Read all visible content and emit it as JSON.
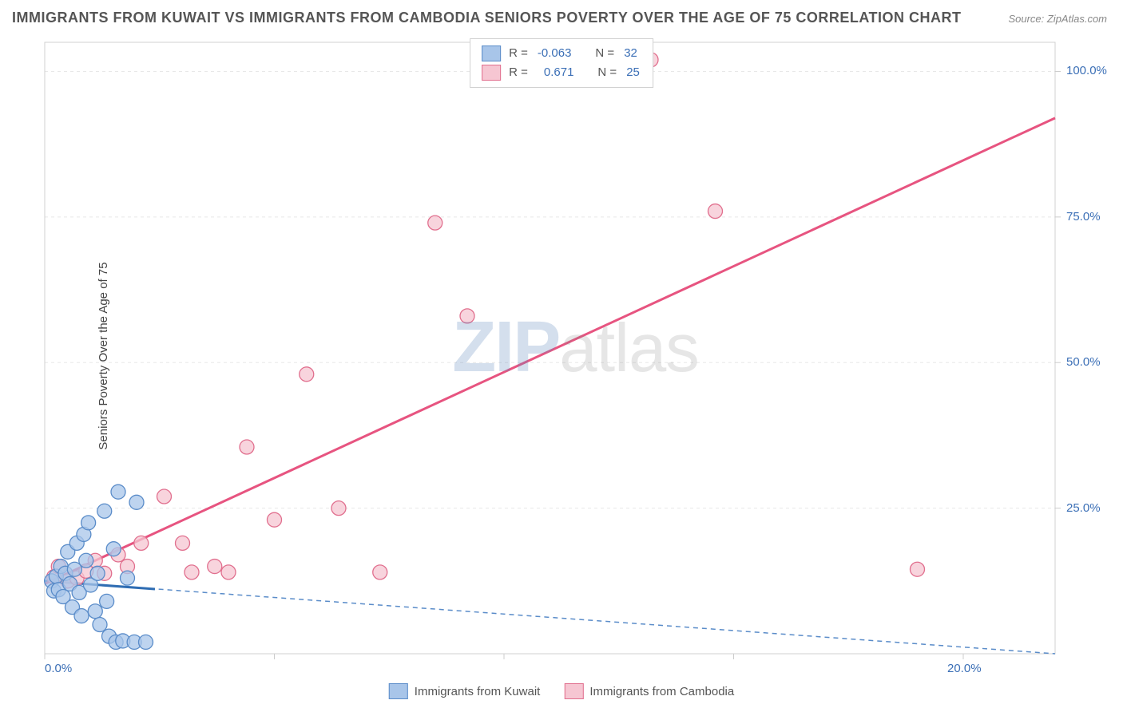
{
  "title": "IMMIGRANTS FROM KUWAIT VS IMMIGRANTS FROM CAMBODIA SENIORS POVERTY OVER THE AGE OF 75 CORRELATION CHART",
  "source": "Source: ZipAtlas.com",
  "y_axis_label": "Seniors Poverty Over the Age of 75",
  "watermark": {
    "part1": "ZIP",
    "part2": "atlas"
  },
  "chart": {
    "type": "scatter-with-regression",
    "background_color": "#ffffff",
    "grid_color": "#e8e8e8",
    "axis_color": "#d0d0d0",
    "tick_color": "#cccccc",
    "xlim": [
      0,
      22
    ],
    "ylim": [
      0,
      105
    ],
    "x_ticks": [
      0,
      5,
      10,
      15,
      20
    ],
    "y_ticks": [
      25,
      50,
      75,
      100
    ],
    "x_tick_label_values": [
      {
        "v": 0,
        "t": "0.0%"
      },
      {
        "v": 20,
        "t": "20.0%"
      }
    ],
    "y_tick_label_values": [
      {
        "v": 25,
        "t": "25.0%"
      },
      {
        "v": 50,
        "t": "50.0%"
      },
      {
        "v": 75,
        "t": "75.0%"
      },
      {
        "v": 100,
        "t": "100.0%"
      }
    ],
    "marker_radius": 9,
    "series": [
      {
        "name": "Immigrants from Kuwait",
        "fill": "#a8c5e9",
        "stroke": "#5a8cc9",
        "line_color": "#2f6db3",
        "line_width": 3,
        "dash_color": "#5a8cc9",
        "R_label": "R =",
        "R": "-0.063",
        "N_label": "N =",
        "N": "32",
        "regression": {
          "x1": 0,
          "y1": 12.5,
          "x2": 22,
          "y2": 0
        },
        "solid_segment": {
          "x1": 0,
          "y1": 12.5,
          "x2": 2.4,
          "y2": 11.1
        },
        "points": [
          [
            0.15,
            12.5
          ],
          [
            0.2,
            10.8
          ],
          [
            0.25,
            13.3
          ],
          [
            0.3,
            11.0
          ],
          [
            0.35,
            15.0
          ],
          [
            0.4,
            9.8
          ],
          [
            0.45,
            13.8
          ],
          [
            0.5,
            17.5
          ],
          [
            0.55,
            12.0
          ],
          [
            0.6,
            8.0
          ],
          [
            0.65,
            14.5
          ],
          [
            0.7,
            19.0
          ],
          [
            0.75,
            10.5
          ],
          [
            0.8,
            6.5
          ],
          [
            0.85,
            20.5
          ],
          [
            0.9,
            16.0
          ],
          [
            0.95,
            22.5
          ],
          [
            1.0,
            11.8
          ],
          [
            1.1,
            7.3
          ],
          [
            1.15,
            13.8
          ],
          [
            1.2,
            5.0
          ],
          [
            1.3,
            24.5
          ],
          [
            1.35,
            9.0
          ],
          [
            1.4,
            3.0
          ],
          [
            1.5,
            18.0
          ],
          [
            1.55,
            2.0
          ],
          [
            1.6,
            27.8
          ],
          [
            1.7,
            2.2
          ],
          [
            1.8,
            13.0
          ],
          [
            1.95,
            2.0
          ],
          [
            2.0,
            26.0
          ],
          [
            2.2,
            2.0
          ]
        ]
      },
      {
        "name": "Immigrants from Cambodia",
        "fill": "#f6c6d2",
        "stroke": "#e16f8e",
        "line_color": "#e75480",
        "line_width": 3,
        "R_label": "R =",
        "R": "0.671",
        "N_label": "N =",
        "N": "25",
        "regression": {
          "x1": 0,
          "y1": 12,
          "x2": 22,
          "y2": 92
        },
        "points": [
          [
            0.2,
            13.2
          ],
          [
            0.3,
            15.0
          ],
          [
            0.5,
            12.5
          ],
          [
            0.7,
            13.0
          ],
          [
            0.9,
            14.2
          ],
          [
            1.1,
            16.0
          ],
          [
            1.3,
            13.8
          ],
          [
            1.6,
            17.0
          ],
          [
            1.8,
            15.0
          ],
          [
            2.1,
            19.0
          ],
          [
            2.6,
            27.0
          ],
          [
            3.0,
            19.0
          ],
          [
            3.2,
            14.0
          ],
          [
            3.7,
            15.0
          ],
          [
            4.0,
            14.0
          ],
          [
            4.4,
            35.5
          ],
          [
            5.0,
            23.0
          ],
          [
            5.7,
            48.0
          ],
          [
            6.4,
            25.0
          ],
          [
            7.3,
            14.0
          ],
          [
            8.5,
            74.0
          ],
          [
            9.2,
            58.0
          ],
          [
            13.2,
            102.0
          ],
          [
            14.6,
            76.0
          ],
          [
            19.0,
            14.5
          ]
        ]
      }
    ]
  }
}
